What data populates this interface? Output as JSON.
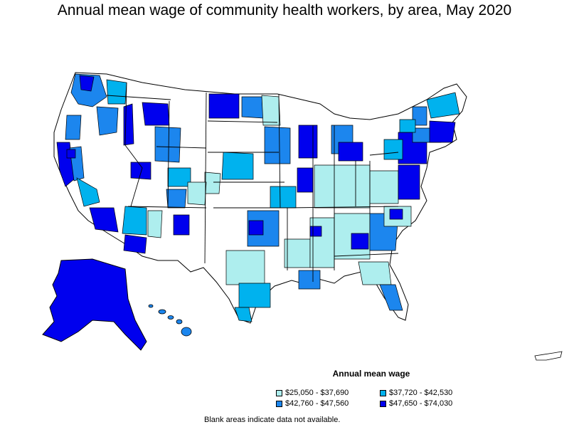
{
  "title": "Annual mean wage of community health workers, by area, May 2020",
  "legend": {
    "title": "Annual mean wage",
    "items": [
      {
        "label": "$25,050 - $37,690",
        "color": "#aeeeee"
      },
      {
        "label": "$37,720 - $42,530",
        "color": "#00b2ee"
      },
      {
        "label": "$42,760 - $47,560",
        "color": "#1c86ee"
      },
      {
        "label": "$47,650 - $74,030",
        "color": "#0000ee"
      }
    ]
  },
  "note": "Blank areas indicate data not available."
}
